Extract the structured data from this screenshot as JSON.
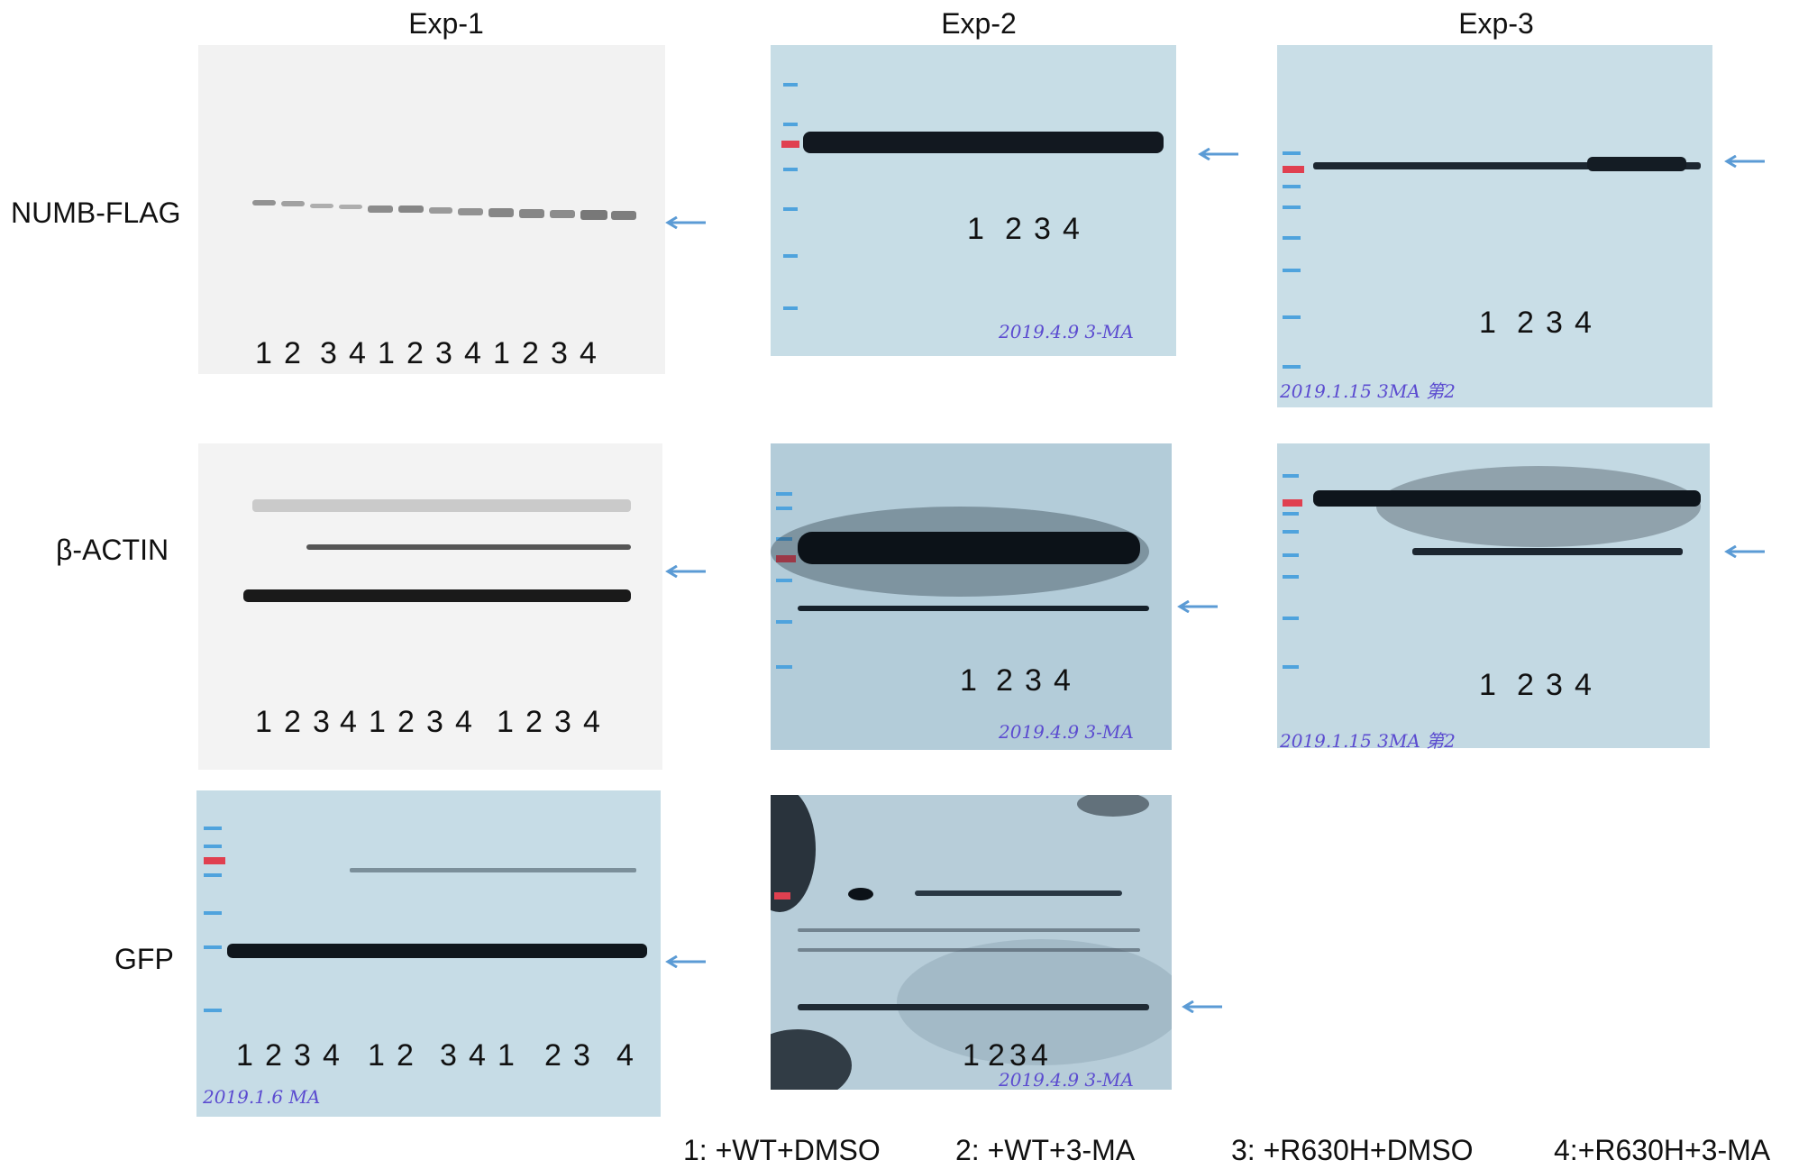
{
  "columns": [
    "Exp-1",
    "Exp-2",
    "Exp-3"
  ],
  "rows": [
    "NUMB-FLAG",
    "β-ACTIN",
    "GFP"
  ],
  "lane_labels": {
    "exp1_numb": [
      "1",
      "2",
      "3",
      "4",
      "1",
      "2",
      "3",
      "4",
      "1",
      "2",
      "3",
      "4"
    ],
    "exp1_actin": [
      "1",
      "2",
      "3",
      "4",
      "1",
      "2",
      "3",
      "4",
      "1",
      "2",
      "3",
      "4"
    ],
    "exp1_gfp": [
      "1",
      "2",
      "3",
      "4",
      "1",
      "2",
      "3",
      "4",
      "1",
      "2",
      "3",
      "4"
    ],
    "short": [
      "1",
      "2",
      "3",
      "4"
    ]
  },
  "handwriting": {
    "exp2": "2019.4.9  3-MA",
    "exp3": "2019.1.15 3MA 第2",
    "exp1_gfp": "2019.1.6 MA"
  },
  "legend": [
    "1: +WT+DMSO",
    "2: +WT+3-MA",
    "3: +R630H+DMSO",
    "4:+R630H+3-MA"
  ],
  "colors": {
    "arrow": "#5b9bd5",
    "blue_blot_bg": "#c7dde6",
    "gray_blot_bg": "#f3f3f3",
    "band": "#111111"
  }
}
